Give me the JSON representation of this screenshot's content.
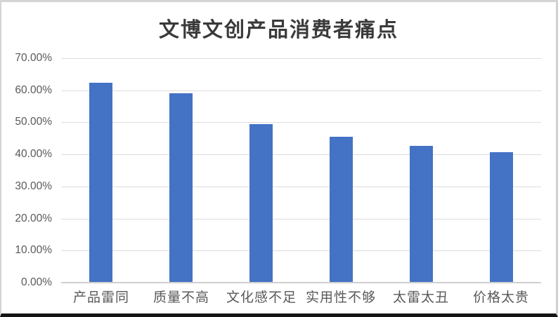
{
  "chart_data": {
    "type": "bar",
    "title": "文博文创产品消费者痛点",
    "categories": [
      "产品雷同",
      "质量不高",
      "文化感不足",
      "实用性不够",
      "太雷太丑",
      "价格太贵"
    ],
    "values": [
      62.4,
      59.1,
      49.5,
      45.5,
      42.7,
      40.6
    ],
    "value_unit": "%",
    "xlabel": "",
    "ylabel": "",
    "ylim": [
      0,
      70
    ],
    "ytick_step": 10,
    "ytick_labels": [
      "0.00%",
      "10.00%",
      "20.00%",
      "30.00%",
      "40.00%",
      "50.00%",
      "60.00%",
      "70.00%"
    ],
    "grid": true,
    "legend_position": "none",
    "colors": {
      "bar": "#4472C4",
      "gridline": "#DDDDDD",
      "axis_line": "#CFCFCF",
      "tick_label": "#595959",
      "title": "#3A3A3A",
      "background": "#FFFFFF"
    }
  }
}
